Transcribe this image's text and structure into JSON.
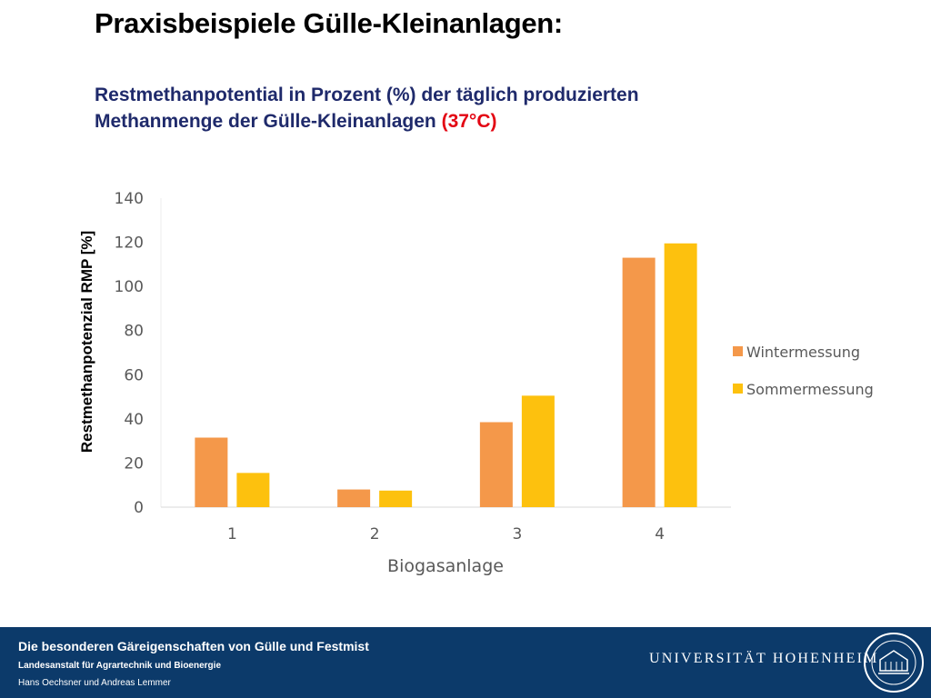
{
  "header": {
    "title": "Praxisbeispiele Gülle-Kleinanlagen:",
    "subtitle_line1": "Restmethanpotential in Prozent (%) der täglich produzierten",
    "subtitle_line2_main": "Methanmenge der Gülle-Kleinanlagen ",
    "subtitle_line2_red": "(37°C)"
  },
  "chart_data": {
    "type": "bar",
    "categories": [
      "1",
      "2",
      "3",
      "4"
    ],
    "series": [
      {
        "name": "Wintermessung",
        "values": [
          31.5,
          8,
          38.5,
          113
        ],
        "color": "#f4984a"
      },
      {
        "name": "Sommermessung",
        "values": [
          15.5,
          7.5,
          50.5,
          119.5
        ],
        "color": "#fdc10e"
      }
    ],
    "xlabel": "Biogasanlage",
    "ylabel": "Restmethanpotenzial  RMP  [%]",
    "ylim": [
      0,
      140
    ],
    "yticks": [
      "0",
      "20",
      "40",
      "60",
      "80",
      "100",
      "120",
      "140"
    ],
    "legend_position": "right",
    "grid": false
  },
  "footer": {
    "title": "Die besonderen Gäreigenschaften von Gülle und Festmist",
    "institute": "Landesanstalt für Agrartechnik und Bioenergie",
    "authors": "Hans Oechsner  und  Andreas Lemmer",
    "university": "UNIVERSITÄT HOHENHEIM",
    "background": "#0c3a6a"
  }
}
